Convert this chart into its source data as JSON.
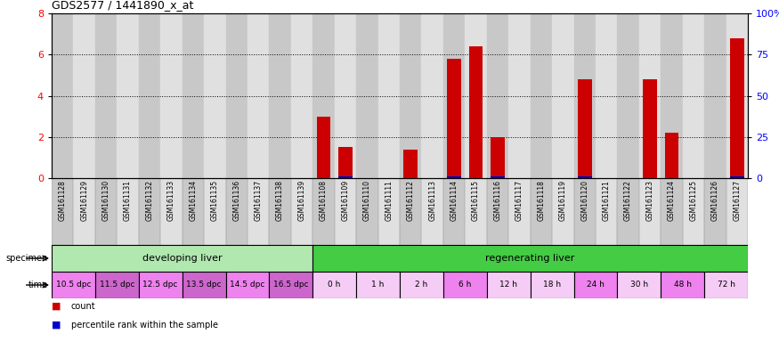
{
  "title": "GDS2577 / 1441890_x_at",
  "samples": [
    "GSM161128",
    "GSM161129",
    "GSM161130",
    "GSM161131",
    "GSM161132",
    "GSM161133",
    "GSM161134",
    "GSM161135",
    "GSM161136",
    "GSM161137",
    "GSM161138",
    "GSM161139",
    "GSM161108",
    "GSM161109",
    "GSM161110",
    "GSM161111",
    "GSM161112",
    "GSM161113",
    "GSM161114",
    "GSM161115",
    "GSM161116",
    "GSM161117",
    "GSM161118",
    "GSM161119",
    "GSM161120",
    "GSM161121",
    "GSM161122",
    "GSM161123",
    "GSM161124",
    "GSM161125",
    "GSM161126",
    "GSM161127"
  ],
  "red_values": [
    0.0,
    0.0,
    0.0,
    0.0,
    0.0,
    0.0,
    0.0,
    0.0,
    0.0,
    0.0,
    0.0,
    0.0,
    3.0,
    1.5,
    0.0,
    0.0,
    1.4,
    0.0,
    5.8,
    6.4,
    2.0,
    0.0,
    0.0,
    0.0,
    4.8,
    0.0,
    0.0,
    4.8,
    2.2,
    0.0,
    0.0,
    6.8
  ],
  "blue_values": [
    0.0,
    0.0,
    0.0,
    0.0,
    0.0,
    0.0,
    0.0,
    0.0,
    0.0,
    0.0,
    0.0,
    0.0,
    0.0,
    0.08,
    0.0,
    0.0,
    0.0,
    0.0,
    0.08,
    0.0,
    0.08,
    0.0,
    0.0,
    0.0,
    0.08,
    0.0,
    0.0,
    0.0,
    0.0,
    0.0,
    0.0,
    0.08
  ],
  "ylim": [
    0,
    8
  ],
  "yticks_left": [
    0,
    2,
    4,
    6,
    8
  ],
  "yticks_right": [
    0,
    25,
    50,
    75,
    100
  ],
  "ytick_right_labels": [
    "0",
    "25",
    "50",
    "75",
    "100%"
  ],
  "specimen_groups": [
    {
      "label": "developing liver",
      "start": 0,
      "end": 12,
      "color": "#b0e8b0"
    },
    {
      "label": "regenerating liver",
      "start": 12,
      "end": 32,
      "color": "#44cc44"
    }
  ],
  "time_groups": [
    {
      "label": "10.5 dpc",
      "start": 0,
      "end": 2,
      "color": "#ee82ee"
    },
    {
      "label": "11.5 dpc",
      "start": 2,
      "end": 4,
      "color": "#cc66cc"
    },
    {
      "label": "12.5 dpc",
      "start": 4,
      "end": 6,
      "color": "#ee82ee"
    },
    {
      "label": "13.5 dpc",
      "start": 6,
      "end": 8,
      "color": "#cc66cc"
    },
    {
      "label": "14.5 dpc",
      "start": 8,
      "end": 10,
      "color": "#ee82ee"
    },
    {
      "label": "16.5 dpc",
      "start": 10,
      "end": 12,
      "color": "#cc66cc"
    },
    {
      "label": "0 h",
      "start": 12,
      "end": 14,
      "color": "#f5ccf5"
    },
    {
      "label": "1 h",
      "start": 14,
      "end": 16,
      "color": "#f5ccf5"
    },
    {
      "label": "2 h",
      "start": 16,
      "end": 18,
      "color": "#f5ccf5"
    },
    {
      "label": "6 h",
      "start": 18,
      "end": 20,
      "color": "#ee82ee"
    },
    {
      "label": "12 h",
      "start": 20,
      "end": 22,
      "color": "#f5ccf5"
    },
    {
      "label": "18 h",
      "start": 22,
      "end": 24,
      "color": "#f5ccf5"
    },
    {
      "label": "24 h",
      "start": 24,
      "end": 26,
      "color": "#ee82ee"
    },
    {
      "label": "30 h",
      "start": 26,
      "end": 28,
      "color": "#f5ccf5"
    },
    {
      "label": "48 h",
      "start": 28,
      "end": 30,
      "color": "#ee82ee"
    },
    {
      "label": "72 h",
      "start": 30,
      "end": 32,
      "color": "#f5ccf5"
    }
  ],
  "bar_color_red": "#cc0000",
  "bar_color_blue": "#0000cc",
  "col_bg_even": "#c8c8c8",
  "col_bg_odd": "#e0e0e0",
  "chart_bg": "#f8f8f8",
  "label_count": "count",
  "label_percentile": "percentile rank within the sample",
  "n_samples": 32
}
